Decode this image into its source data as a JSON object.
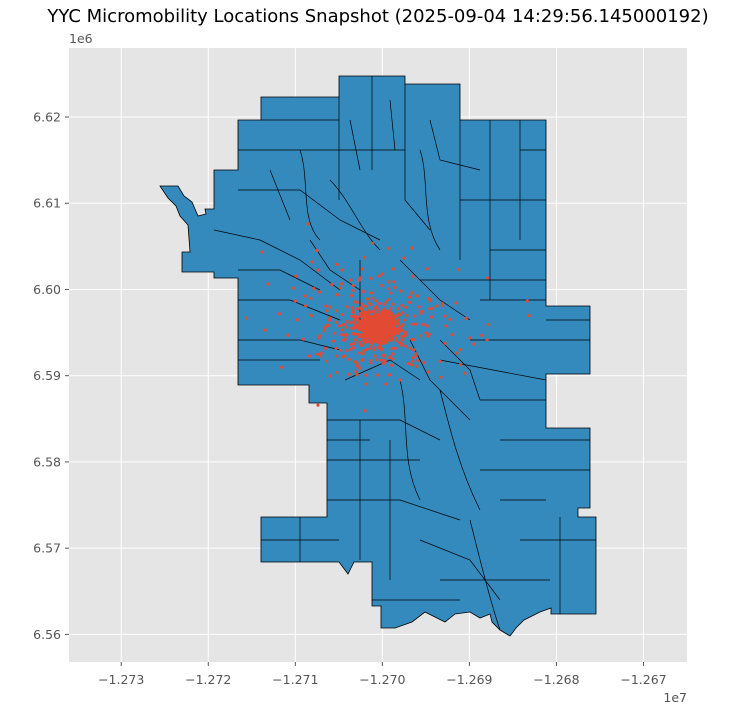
{
  "title": "YYC Micromobility Locations Snapshot (2025-09-04 14:29:56.145000192)",
  "x_offset_label": "1e7",
  "y_offset_label": "1e6",
  "colors": {
    "plot_background": "#e5e5e5",
    "grid": "#ffffff",
    "community_fill": "#348abd",
    "community_edge": "#000000",
    "vehicle_point": "#e24a33"
  },
  "chart_data": {
    "type": "scatter",
    "title": "YYC Micromobility Locations Snapshot (2025-09-04 14:29:56.145000192)",
    "xlim": [
      -12736000,
      -12665000
    ],
    "ylim": [
      6556800,
      6628000
    ],
    "x_ticks": [
      -12730000,
      -12720000,
      -12710000,
      -12700000,
      -12690000,
      -12680000,
      -12670000
    ],
    "x_tick_labels": [
      "−1.273",
      "−1.272",
      "−1.271",
      "−1.270",
      "−1.269",
      "−1.268",
      "−1.267"
    ],
    "y_ticks": [
      6560000,
      6570000,
      6580000,
      6590000,
      6600000,
      6610000,
      6620000
    ],
    "y_tick_labels": [
      "6.56",
      "6.57",
      "6.58",
      "6.59",
      "6.60",
      "6.61",
      "6.62"
    ],
    "grid": true,
    "layers": [
      "community boundaries",
      "vehicle locations"
    ],
    "vehicle_cluster_center": [
      -12700500,
      6595700
    ]
  }
}
